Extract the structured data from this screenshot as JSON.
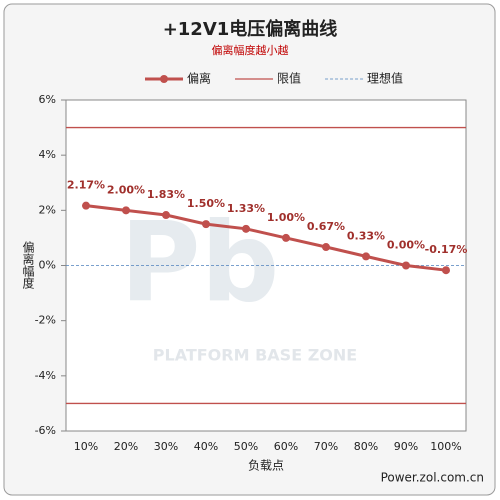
{
  "chart_data": {
    "type": "line",
    "title": "+12V1电压偏离曲线",
    "subtitle": "偏离幅度越小越",
    "x_label": "负载点",
    "y_label": "偏离幅度",
    "watermark": "PLATFORM BASE ZONE",
    "source": "Power.zol.com.cn",
    "categories": [
      "10%",
      "20%",
      "30%",
      "40%",
      "50%",
      "60%",
      "70%",
      "80%",
      "90%",
      "100%"
    ],
    "series": [
      {
        "name": "偏离",
        "color": "#c0504d",
        "values": [
          2.17,
          2.0,
          1.83,
          1.5,
          1.33,
          1.0,
          0.67,
          0.33,
          0.0,
          -0.17
        ],
        "value_labels": [
          "2.17%",
          "2.00%",
          "1.83%",
          "1.50%",
          "1.33%",
          "1.00%",
          "0.67%",
          "0.33%",
          "0.00%",
          "-0.17%"
        ]
      }
    ],
    "reference_lines": [
      {
        "name": "限值",
        "color": "#c0504d",
        "values": [
          5,
          -5
        ]
      },
      {
        "name": "理想值",
        "color": "#4f81bd",
        "dashed": true,
        "values": [
          0
        ]
      }
    ],
    "ylim": [
      -6,
      6
    ],
    "yticks": [
      {
        "value": -6,
        "label": "-6%"
      },
      {
        "value": -4,
        "label": "-4%"
      },
      {
        "value": -2,
        "label": "-2%"
      },
      {
        "value": 0,
        "label": "0%"
      },
      {
        "value": 2,
        "label": "2%"
      },
      {
        "value": 4,
        "label": "4%"
      },
      {
        "value": 6,
        "label": "6%"
      }
    ],
    "legend": "top"
  }
}
